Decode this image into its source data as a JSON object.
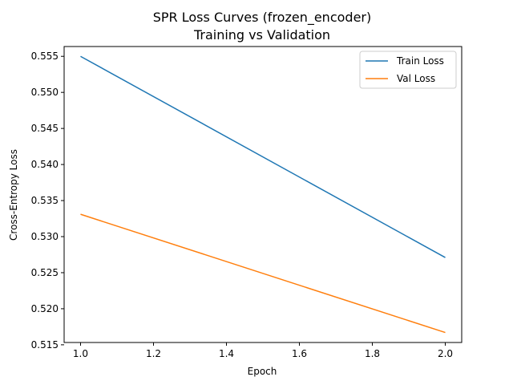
{
  "chart_data": {
    "type": "line",
    "title": "SPR Loss Curves (frozen_encoder)",
    "subtitle": "Training vs Validation",
    "xlabel": "Epoch",
    "ylabel": "Cross-Entropy Loss",
    "xlim": [
      0.955,
      2.045
    ],
    "ylim": [
      0.51532,
      0.55636
    ],
    "x_ticks": [
      {
        "value": 1.0,
        "label": "1.0"
      },
      {
        "value": 1.2,
        "label": "1.2"
      },
      {
        "value": 1.4,
        "label": "1.4"
      },
      {
        "value": 1.6,
        "label": "1.6"
      },
      {
        "value": 1.8,
        "label": "1.8"
      },
      {
        "value": 2.0,
        "label": "2.0"
      }
    ],
    "y_ticks": [
      {
        "value": 0.515,
        "label": "0.515"
      },
      {
        "value": 0.52,
        "label": "0.520"
      },
      {
        "value": 0.525,
        "label": "0.525"
      },
      {
        "value": 0.53,
        "label": "0.530"
      },
      {
        "value": 0.535,
        "label": "0.535"
      },
      {
        "value": 0.54,
        "label": "0.540"
      },
      {
        "value": 0.545,
        "label": "0.545"
      },
      {
        "value": 0.55,
        "label": "0.550"
      },
      {
        "value": 0.555,
        "label": "0.555"
      }
    ],
    "grid": false,
    "legend_position": "top-right",
    "series": [
      {
        "name": "Train Loss",
        "color": "#1f77b4",
        "x": [
          1.0,
          2.0
        ],
        "y": [
          0.555,
          0.5271
        ]
      },
      {
        "name": "Val Loss",
        "color": "#ff7f0e",
        "x": [
          1.0,
          2.0
        ],
        "y": [
          0.5331,
          0.5167
        ]
      }
    ]
  }
}
